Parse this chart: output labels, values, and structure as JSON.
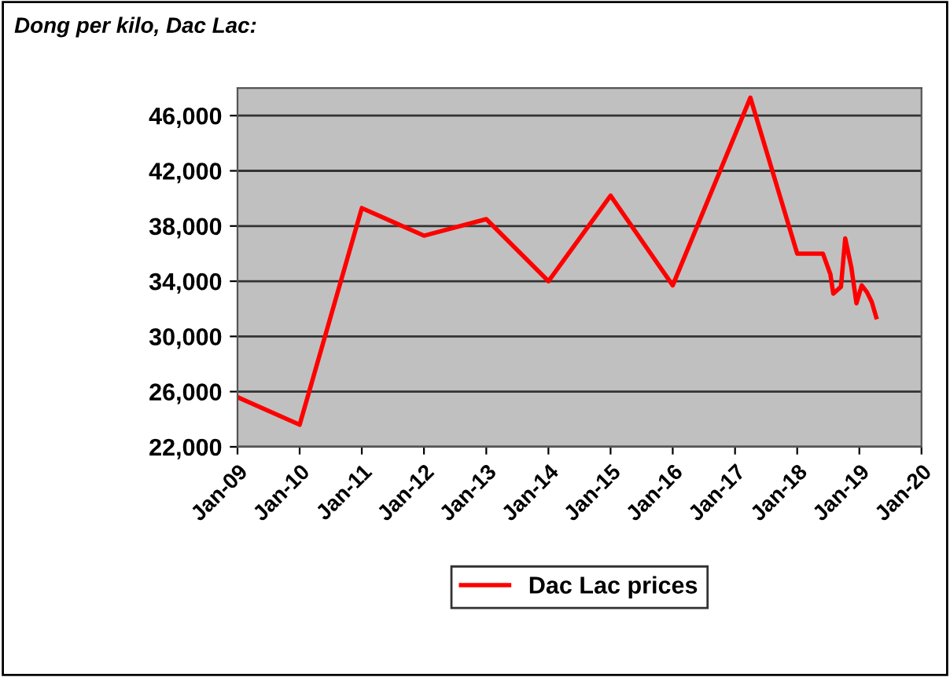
{
  "chart_data": {
    "type": "line",
    "title": "Dong per kilo, Dac Lac:",
    "x": [
      "2009-01-01",
      "2010-01-01",
      "2011-01-01",
      "2012-01-01",
      "2013-01-01",
      "2014-01-01",
      "2015-01-01",
      "2016-01-01",
      "2017-04-01",
      "2018-01-01",
      "2018-06-01",
      "2018-07-15",
      "2018-08-01",
      "2018-09-15",
      "2018-10-10",
      "2018-11-15",
      "2018-12-15",
      "2019-01-15",
      "2019-02-15",
      "2019-03-15",
      "2019-04-10"
    ],
    "series": [
      {
        "name": "Dac Lac prices",
        "color": "#ff0000",
        "values": [
          25600,
          23600,
          39300,
          37300,
          38500,
          34000,
          40200,
          33700,
          47300,
          36000,
          36000,
          34500,
          33100,
          33600,
          37100,
          35000,
          32400,
          33700,
          33200,
          32500,
          31400
        ]
      }
    ],
    "ylim": [
      22000,
      48000
    ],
    "yticks": [
      {
        "value": 22000,
        "label": "22,000"
      },
      {
        "value": 26000,
        "label": "26,000"
      },
      {
        "value": 30000,
        "label": "30,000"
      },
      {
        "value": 34000,
        "label": "34,000"
      },
      {
        "value": 38000,
        "label": "38,000"
      },
      {
        "value": 42000,
        "label": "42,000"
      },
      {
        "value": 46000,
        "label": "46,000"
      }
    ],
    "xlim": [
      "2009-01-01",
      "2020-01-01"
    ],
    "xticks": [
      {
        "value": "2009-01-01",
        "label": "Jan-09"
      },
      {
        "value": "2010-01-01",
        "label": "Jan-10"
      },
      {
        "value": "2011-01-01",
        "label": "Jan-11"
      },
      {
        "value": "2012-01-01",
        "label": "Jan-12"
      },
      {
        "value": "2013-01-01",
        "label": "Jan-13"
      },
      {
        "value": "2014-01-01",
        "label": "Jan-14"
      },
      {
        "value": "2015-01-01",
        "label": "Jan-15"
      },
      {
        "value": "2016-01-01",
        "label": "Jan-16"
      },
      {
        "value": "2017-01-01",
        "label": "Jan-17"
      },
      {
        "value": "2018-01-01",
        "label": "Jan-18"
      },
      {
        "value": "2019-01-01",
        "label": "Jan-19"
      },
      {
        "value": "2020-01-01",
        "label": "Jan-20"
      }
    ],
    "grid": "y",
    "legend": "bottom",
    "marker": "none",
    "line_style": "solid"
  }
}
